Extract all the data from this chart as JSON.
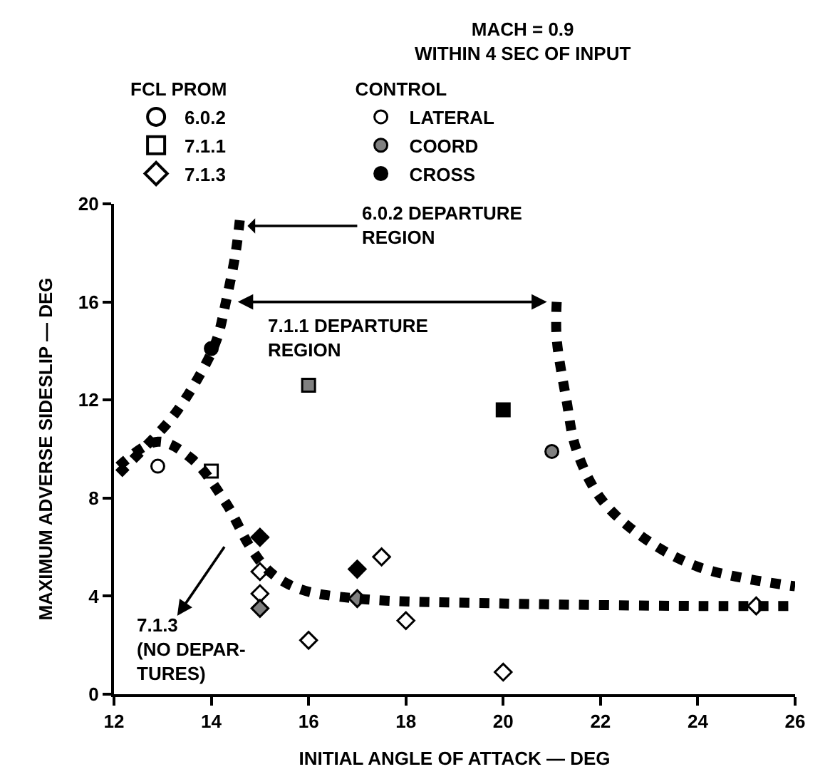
{
  "chart_data": {
    "type": "scatter",
    "title": "MACH = 0.9",
    "subtitle": "WITHIN 4 SEC OF INPUT",
    "xlabel": "INITIAL ANGLE OF ATTACK — DEG",
    "ylabel": "MAXIMUM ADVERSE SIDESLIP — DEG",
    "legend_title": [
      "FCL PROM",
      "CONTROL"
    ],
    "legend": "top left",
    "xlim": [
      12,
      26
    ],
    "xticks": [
      12,
      14,
      16,
      18,
      20,
      22,
      24,
      26
    ],
    "ylim": [
      0,
      20
    ],
    "yticks": [
      0,
      4,
      8,
      12,
      16,
      20
    ],
    "series": [
      {
        "name": "6.0.2",
        "marker": "circle",
        "color": "#000000",
        "x": [
          12.9,
          14,
          21
        ],
        "values": [
          9.3,
          14.1,
          9.9
        ],
        "colors": [
          "#ffffff",
          "#000000",
          "#808080"
        ]
      },
      {
        "name": "7.1.1",
        "marker": "square",
        "color": "#000000",
        "x": [
          14,
          16,
          20
        ],
        "values": [
          9.1,
          12.6,
          11.6
        ],
        "colors": [
          "#ffffff",
          "#808080",
          "#000000"
        ]
      },
      {
        "name": "7.1.3",
        "marker": "diamond",
        "color": "#000000",
        "x": [
          15,
          15,
          15,
          15,
          17.5,
          17,
          17,
          18,
          16,
          20,
          25.2
        ],
        "values": [
          5.0,
          6.4,
          4.1,
          3.5,
          5.6,
          5.1,
          3.9,
          3.0,
          2.2,
          0.9,
          3.6
        ],
        "colors": [
          "#ffffff",
          "#000000",
          "#ffffff",
          "#808080",
          "#ffffff",
          "#000000",
          "#808080",
          "#ffffff",
          "#ffffff",
          "#ffffff",
          "#ffffff"
        ]
      },
      {
        "name": "LATERAL",
        "marker": "circle",
        "color": "#ffffff"
      },
      {
        "name": "COORD",
        "marker": "circle",
        "color": "#808080"
      },
      {
        "name": "CROSS",
        "marker": "circle",
        "color": "#000000"
      },
      {
        "type": "line",
        "line_style": "dashed",
        "color": "#000000",
        "x": [
          12.1,
          12.6,
          13.2,
          13.7,
          14.1,
          14.3,
          14.5,
          14.6
        ],
        "values": [
          9.0,
          10.0,
          11.3,
          12.8,
          14.4,
          16.0,
          18.0,
          19.6
        ]
      },
      {
        "type": "line",
        "line_style": "dashed",
        "color": "#000000",
        "x": [
          12.1,
          12.9,
          13.6,
          14.3,
          14.8,
          15.2,
          15.8,
          17,
          20,
          24,
          26
        ],
        "values": [
          9.3,
          10.3,
          9.6,
          7.8,
          6.0,
          5.0,
          4.3,
          3.9,
          3.7,
          3.6,
          3.6
        ]
      },
      {
        "type": "line",
        "line_style": "dashed",
        "color": "#000000",
        "x": [
          21.1,
          21.1,
          21.3,
          21.5,
          22,
          22.8,
          24,
          26
        ],
        "values": [
          16,
          14.5,
          12,
          10,
          8,
          6.5,
          5.2,
          4.4
        ]
      }
    ],
    "annotations": [
      {
        "text": "6.0.2 DEPARTURE\nREGION",
        "x": 14.7,
        "y": 19.1
      },
      {
        "text": "7.1.1 DEPARTURE\nREGION",
        "x": 14.5,
        "y": 16
      },
      "7.1.3\n(NO DEPAR-\nTURES)"
    ]
  }
}
